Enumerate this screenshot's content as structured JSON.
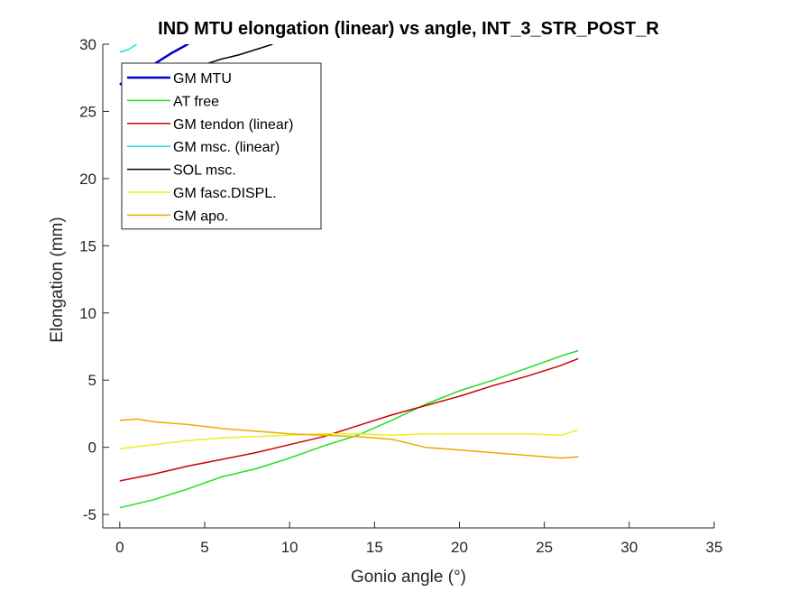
{
  "chart_data": {
    "type": "line",
    "title": "IND MTU elongation (linear) vs angle, INT_3_STR_POST_R",
    "xlabel": "Gonio angle (°)",
    "ylabel": "Elongation (mm)",
    "xlim": [
      -1,
      35
    ],
    "ylim": [
      -6,
      30
    ],
    "xticks": [
      0,
      5,
      10,
      15,
      20,
      25,
      30,
      35
    ],
    "yticks": [
      -5,
      0,
      5,
      10,
      15,
      20,
      25,
      30
    ],
    "grid": false,
    "legend_position": "top-left",
    "series": [
      {
        "name": "GM MTU",
        "color": "#0000cc",
        "width": 2.5,
        "x": [
          0,
          1,
          2,
          3,
          4,
          4.2
        ],
        "y": [
          27.0,
          27.7,
          28.5,
          29.3,
          30.0,
          30.2
        ]
      },
      {
        "name": "AT free",
        "color": "#22dd22",
        "width": 1.5,
        "x": [
          0,
          2,
          4,
          6,
          8,
          10,
          12,
          14,
          16,
          18,
          20,
          22,
          24,
          26,
          27
        ],
        "y": [
          -4.5,
          -3.9,
          -3.1,
          -2.2,
          -1.6,
          -0.8,
          0.1,
          0.9,
          2.0,
          3.2,
          4.2,
          5.0,
          5.9,
          6.8,
          7.2
        ]
      },
      {
        "name": "GM tendon (linear)",
        "color": "#cc0000",
        "width": 1.5,
        "x": [
          0,
          2,
          4,
          6,
          8,
          10,
          12,
          14,
          16,
          18,
          20,
          22,
          24,
          26,
          27
        ],
        "y": [
          -2.5,
          -2.0,
          -1.4,
          -0.9,
          -0.4,
          0.2,
          0.8,
          1.6,
          2.4,
          3.1,
          3.8,
          4.6,
          5.3,
          6.1,
          6.6
        ]
      },
      {
        "name": "GM msc. (linear)",
        "color": "#22dddd",
        "width": 1.5,
        "x": [
          0,
          0.5,
          1.0
        ],
        "y": [
          29.4,
          29.6,
          30.0
        ]
      },
      {
        "name": "SOL msc.",
        "color": "#000000",
        "width": 1.5,
        "x": [
          5,
          6,
          7,
          8,
          9
        ],
        "y": [
          28.5,
          28.9,
          29.2,
          29.6,
          30.0
        ]
      },
      {
        "name": "GM fasc.DISPL.",
        "color": "#eeee22",
        "width": 1.5,
        "x": [
          0,
          2,
          4,
          6,
          8,
          10,
          12,
          14,
          16,
          18,
          20,
          22,
          24,
          26,
          27
        ],
        "y": [
          -0.1,
          0.2,
          0.5,
          0.7,
          0.8,
          0.9,
          1.0,
          1.0,
          0.9,
          1.0,
          1.0,
          1.0,
          1.0,
          0.9,
          1.3
        ]
      },
      {
        "name": "GM apo.",
        "color": "#eeaa00",
        "width": 1.5,
        "x": [
          0,
          1,
          2,
          4,
          6,
          8,
          10,
          12,
          14,
          16,
          18,
          20,
          22,
          24,
          26,
          27
        ],
        "y": [
          2.0,
          2.1,
          1.9,
          1.7,
          1.4,
          1.2,
          1.0,
          0.9,
          0.8,
          0.6,
          0.0,
          -0.2,
          -0.4,
          -0.6,
          -0.8,
          -0.7
        ]
      }
    ]
  }
}
